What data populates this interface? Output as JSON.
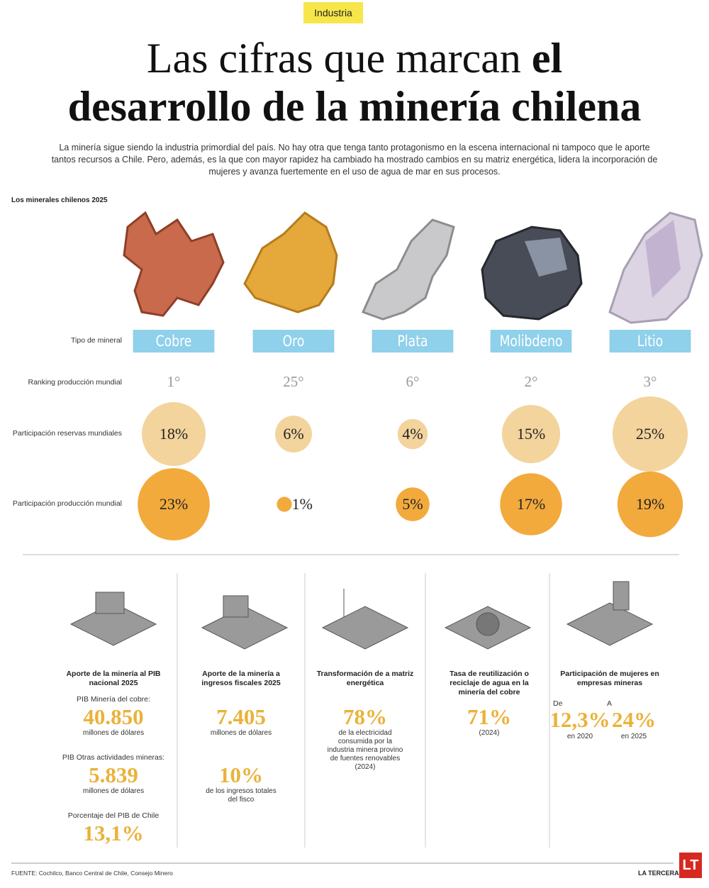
{
  "header": {
    "tag": "Industria",
    "title_regular": "Las cifras que marcan ",
    "title_bold_1": "el",
    "title_bold_2": "desarrollo de la minería chilena",
    "intro": "La minería sigue siendo la industria primordial del país. No hay otra que tenga tanto protagonismo en la escena internacional ni tampoco que le aporte tantos recursos a Chile. Pero, además, es la que con mayor rapidez ha cambiado ha mostrado cambios en su matriz energética, lidera la incorporación de mujeres y avanza fuertemente en el uso de agua de mar en sus procesos."
  },
  "minerals": {
    "section_title": "Los minerales chilenos 2025",
    "row_labels": [
      "Tipo de mineral",
      "Ranking producción mundial",
      "Participación reservas mundiales",
      "Participación producción mundial"
    ],
    "names": [
      "Cobre",
      "Oro",
      "Plata",
      "Molibdeno",
      "Litio"
    ],
    "ranking": [
      "1°",
      "25°",
      "6°",
      "2°",
      "3°"
    ],
    "reserves": [
      18,
      6,
      4,
      15,
      25
    ],
    "reserves_labels": [
      "18%",
      "6%",
      "4%",
      "15%",
      "25%"
    ],
    "production": [
      23,
      1,
      5,
      17,
      19
    ],
    "production_labels": [
      "23%",
      "1%",
      "5%",
      "17%",
      "19%"
    ]
  },
  "stats": [
    {
      "title": "Aporte de la minería al PIB nacional 2025",
      "items": [
        {
          "label": "PIB Minería del cobre:",
          "value": "40.850",
          "unit": "millones de dólares"
        },
        {
          "label": "PIB Otras actividades mineras:",
          "value": "5.839",
          "unit": "millones de dólares"
        },
        {
          "label": "Porcentaje del PIB de Chile",
          "value": "13,1%"
        }
      ]
    },
    {
      "title": "Aporte de la minería a ingresos fiscales 2025",
      "items": [
        {
          "value": "7.405",
          "unit": "millones de dólares"
        },
        {
          "value": "10%",
          "unit": "de los ingresos totales del fisco"
        }
      ]
    },
    {
      "title": "Transformación de a matriz energética",
      "items": [
        {
          "value": "78%",
          "unit": "de la electricidad consumida por la industria minera provino de fuentes renovables (2024)"
        }
      ]
    },
    {
      "title": "Tasa de reutilización o reciclaje de agua en la minería del cobre",
      "items": [
        {
          "value": "71%",
          "unit": "(2024)"
        }
      ]
    },
    {
      "title": "Participación de mujeres en empresas mineras",
      "items": [
        {
          "label": "De",
          "value": "12,3%",
          "unit": "en 2020"
        },
        {
          "label": "A",
          "value": "24%",
          "unit": "en 2025"
        }
      ]
    }
  ],
  "footer": {
    "source": "FUENTE: Cochilco, Banco Central de Chile, Consejo Minero",
    "brand": "LA TERCERA",
    "logo": "LT"
  }
}
